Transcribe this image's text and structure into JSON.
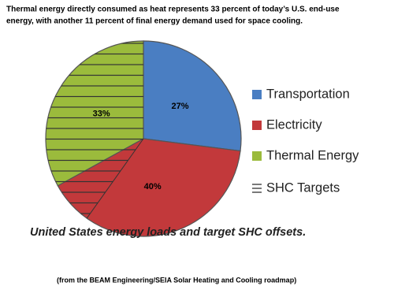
{
  "chart_data": {
    "type": "pie",
    "title_lines": [
      "Thermal energy directly consumed as heat represents 33  percent of today’s U.S. end-use",
      "energy, with another 11  percent of final energy demand used for space cooling."
    ],
    "categories": [
      "Transportation",
      "Electricity",
      "Thermal Energy"
    ],
    "values": [
      27,
      40,
      33
    ],
    "value_labels": [
      "27%",
      "40%",
      "33%"
    ],
    "colors": [
      "#4a7ec2",
      "#c2393b",
      "#9bbb3c"
    ],
    "hatch_label": "SHC Targets",
    "caption": "United States energy loads and target SHC offsets.",
    "source": "(from the BEAM Engineering/SEIA Solar Heating and Cooling roadmap)"
  }
}
